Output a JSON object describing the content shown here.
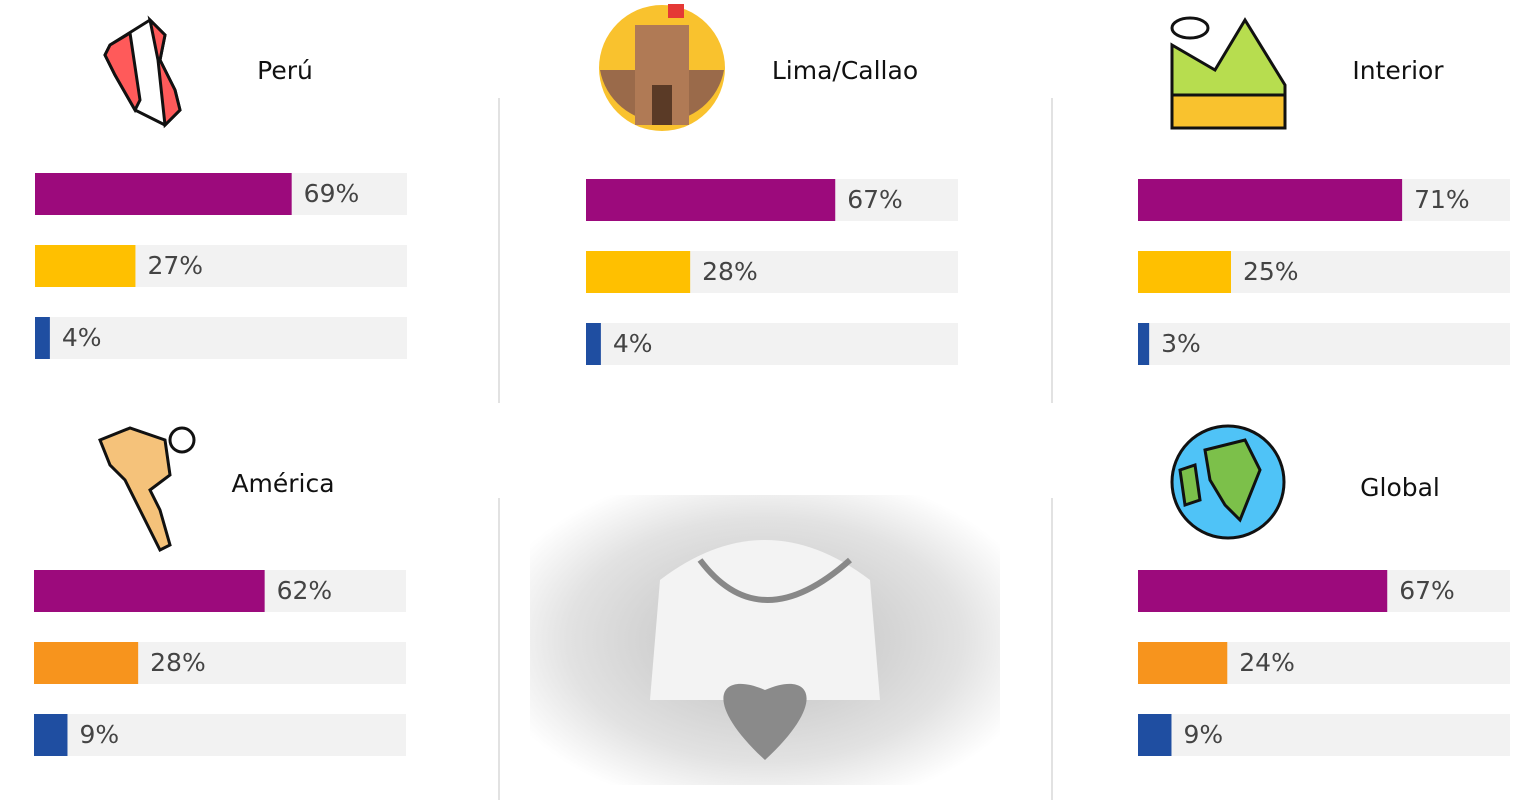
{
  "chart_data": [
    {
      "type": "bar",
      "title": "Perú",
      "values": [
        69,
        27,
        4
      ],
      "value_labels": [
        "69%",
        "27%",
        "4%"
      ],
      "colors": [
        "#9c0a7c",
        "#ffc000",
        "#1f4ea1"
      ],
      "xlim": [
        0,
        100
      ]
    },
    {
      "type": "bar",
      "title": "Lima/Callao",
      "values": [
        67,
        28,
        4
      ],
      "value_labels": [
        "67%",
        "28%",
        "4%"
      ],
      "colors": [
        "#9c0a7c",
        "#ffc000",
        "#1f4ea1"
      ],
      "xlim": [
        0,
        100
      ]
    },
    {
      "type": "bar",
      "title": "Interior",
      "values": [
        71,
        25,
        3
      ],
      "value_labels": [
        "71%",
        "25%",
        "3%"
      ],
      "colors": [
        "#9c0a7c",
        "#ffc000",
        "#1f4ea1"
      ],
      "xlim": [
        0,
        100
      ]
    },
    {
      "type": "bar",
      "title": "América",
      "values": [
        62,
        28,
        9
      ],
      "value_labels": [
        "62%",
        "28%",
        "9%"
      ],
      "colors": [
        "#9c0a7c",
        "#f7941d",
        "#1f4ea1"
      ],
      "xlim": [
        0,
        100
      ]
    },
    {
      "type": "bar",
      "title": "Global",
      "values": [
        67,
        24,
        9
      ],
      "value_labels": [
        "67%",
        "24%",
        "9%"
      ],
      "colors": [
        "#9c0a7c",
        "#f7941d",
        "#1f4ea1"
      ],
      "xlim": [
        0,
        100
      ]
    }
  ]
}
